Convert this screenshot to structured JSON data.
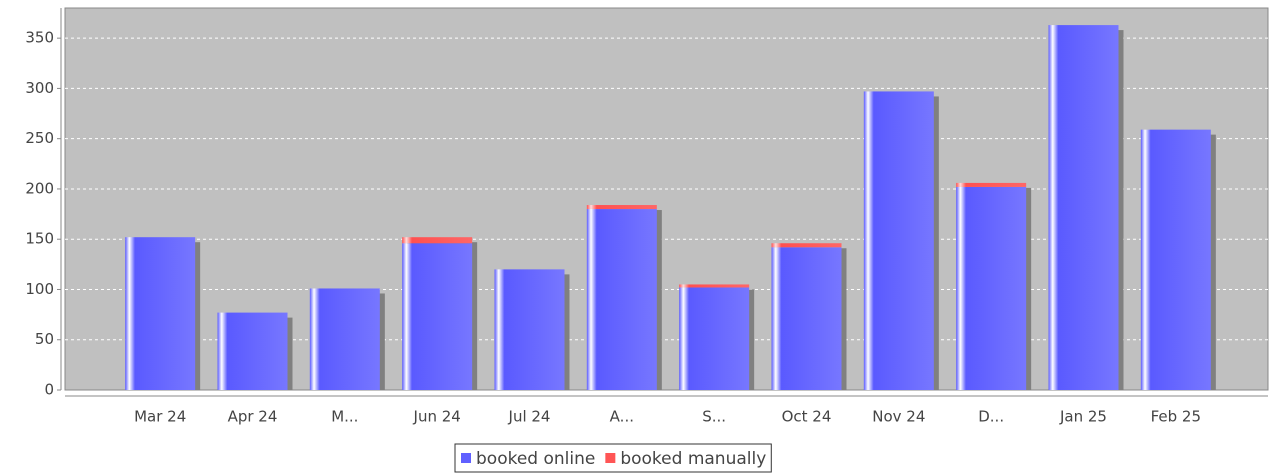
{
  "chart_data": {
    "type": "bar",
    "stacked": true,
    "categories": [
      "Mar 24",
      "Apr 24",
      "M...",
      "Jun 24",
      "Jul 24",
      "A...",
      "S...",
      "Oct 24",
      "Nov 24",
      "D...",
      "Jan 25",
      "Feb 25"
    ],
    "series": [
      {
        "name": "booked online",
        "color": "#6060ff",
        "values": [
          152,
          77,
          101,
          146,
          120,
          180,
          102,
          142,
          297,
          202,
          363,
          259
        ]
      },
      {
        "name": "booked manually",
        "color": "#ff5555",
        "values": [
          0,
          0,
          0,
          6,
          0,
          4,
          3,
          4,
          0,
          4,
          0,
          0
        ]
      }
    ],
    "ylim": [
      0,
      380
    ],
    "yticks": [
      0,
      50,
      100,
      150,
      200,
      250,
      300,
      350
    ],
    "grid": true,
    "legend": "bottom"
  }
}
